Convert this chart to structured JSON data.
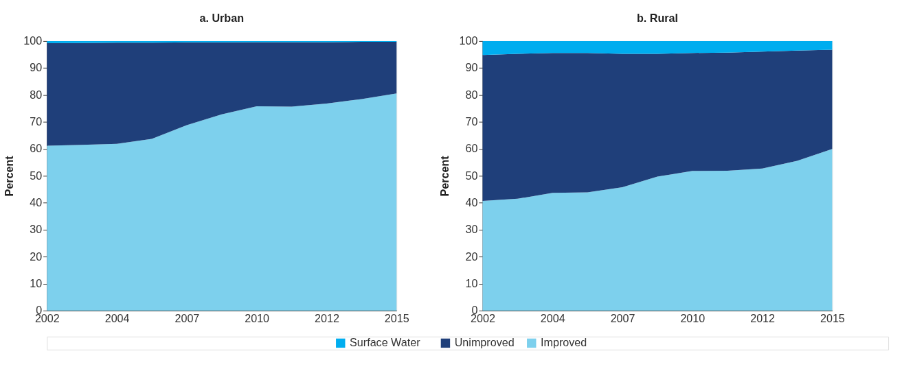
{
  "chart_data": [
    {
      "type": "area",
      "stacked": true,
      "title": "a. Urban",
      "ylabel": "Percent",
      "categories": [
        "2002",
        null,
        "2004",
        null,
        "2007",
        null,
        "2010",
        null,
        "2012",
        null,
        "2015"
      ],
      "ylim": [
        0,
        100
      ],
      "yticks": [
        0,
        10,
        20,
        30,
        40,
        50,
        60,
        70,
        80,
        90,
        100
      ],
      "grid": false,
      "legend": "bottom",
      "series": [
        {
          "name": "Improved",
          "color": "#7dd0ed",
          "values": [
            61.2,
            61.5,
            61.9,
            63.7,
            68.8,
            72.8,
            75.8,
            75.7,
            76.8,
            78.5,
            80.6
          ]
        },
        {
          "name": "Unimproved",
          "color": "#1f3f7a",
          "values": [
            38.0,
            37.8,
            37.5,
            35.7,
            30.7,
            26.7,
            23.8,
            23.9,
            22.8,
            21.2,
            19.1
          ]
        },
        {
          "name": "Surface Water",
          "color": "#00adef",
          "values": [
            0.8,
            0.7,
            0.6,
            0.6,
            0.5,
            0.5,
            0.4,
            0.4,
            0.4,
            0.3,
            0.3
          ]
        }
      ]
    },
    {
      "type": "area",
      "stacked": true,
      "title": "b. Rural",
      "ylabel": "Percent",
      "categories": [
        "2002",
        null,
        "2004",
        null,
        "2007",
        null,
        "2010",
        null,
        "2012",
        null,
        "2015"
      ],
      "ylim": [
        0,
        100
      ],
      "yticks": [
        0,
        10,
        20,
        30,
        40,
        50,
        60,
        70,
        80,
        90,
        100
      ],
      "grid": false,
      "legend": "bottom",
      "series": [
        {
          "name": "Improved",
          "color": "#7dd0ed",
          "values": [
            40.7,
            41.5,
            43.7,
            43.9,
            45.8,
            49.7,
            51.8,
            51.9,
            52.7,
            55.6,
            60.0
          ]
        },
        {
          "name": "Unimproved",
          "color": "#1f3f7a",
          "values": [
            54.1,
            53.8,
            51.9,
            51.7,
            49.5,
            45.6,
            43.8,
            43.8,
            43.4,
            40.9,
            36.8
          ]
        },
        {
          "name": "Surface Water",
          "color": "#00adef",
          "values": [
            5.2,
            4.7,
            4.4,
            4.4,
            4.7,
            4.7,
            4.4,
            4.3,
            3.9,
            3.5,
            3.2
          ]
        }
      ]
    }
  ]
}
